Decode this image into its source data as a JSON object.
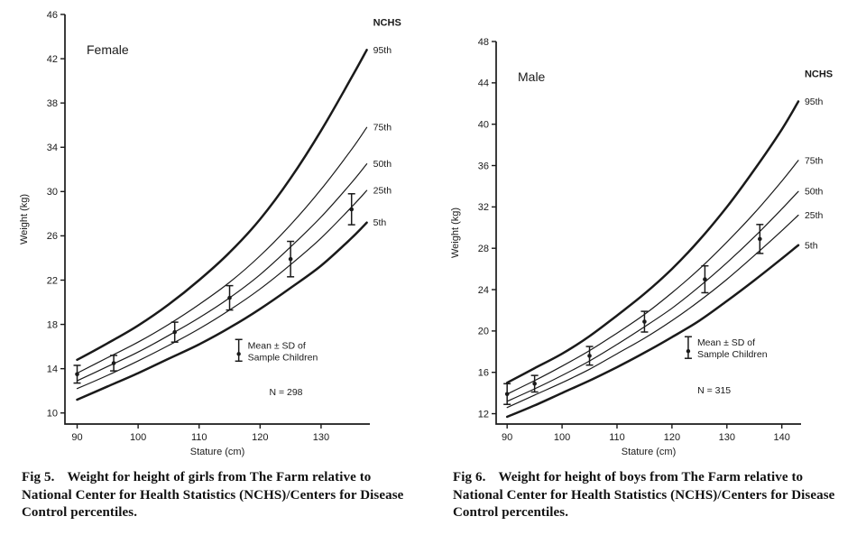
{
  "page": {
    "background": "#ffffff",
    "ink": "#1a1a1a"
  },
  "chart_data": [
    {
      "type": "line",
      "group_label": "Female",
      "nchs_label": "NCHS",
      "xlabel": "Stature (cm)",
      "ylabel": "Weight (kg)",
      "xlim": [
        88,
        138
      ],
      "ylim": [
        9,
        46
      ],
      "xticks": [
        90,
        100,
        110,
        120,
        130
      ],
      "yticks": [
        10,
        14,
        18,
        22,
        26,
        30,
        34,
        38,
        42,
        46
      ],
      "pad_top": 14,
      "x": [
        90,
        95,
        100,
        105,
        110,
        115,
        120,
        125,
        130,
        135,
        137.5
      ],
      "series": [
        {
          "name": "95th",
          "values": [
            14.8,
            16.3,
            17.9,
            19.8,
            22.0,
            24.5,
            27.5,
            31.2,
            35.5,
            40.3,
            42.8
          ]
        },
        {
          "name": "75th",
          "values": [
            13.6,
            15.0,
            16.4,
            18.0,
            19.8,
            21.8,
            24.2,
            27.0,
            30.2,
            33.8,
            35.8
          ]
        },
        {
          "name": "50th",
          "values": [
            12.9,
            14.2,
            15.5,
            17.0,
            18.6,
            20.4,
            22.5,
            25.0,
            27.7,
            30.8,
            32.5
          ]
        },
        {
          "name": "25th",
          "values": [
            12.2,
            13.4,
            14.7,
            16.1,
            17.6,
            19.3,
            21.2,
            23.4,
            25.8,
            28.6,
            30.1
          ]
        },
        {
          "name": "5th",
          "values": [
            11.2,
            12.4,
            13.6,
            14.9,
            16.2,
            17.7,
            19.4,
            21.3,
            23.3,
            25.8,
            27.2
          ]
        }
      ],
      "sample_points": [
        {
          "x": 90,
          "mean": 13.5,
          "sd": 0.8
        },
        {
          "x": 96,
          "mean": 14.5,
          "sd": 0.7
        },
        {
          "x": 106,
          "mean": 17.3,
          "sd": 0.9
        },
        {
          "x": 115,
          "mean": 20.4,
          "sd": 1.1
        },
        {
          "x": 125,
          "mean": 23.9,
          "sd": 1.6
        },
        {
          "x": 135,
          "mean": 28.4,
          "sd": 1.4
        }
      ],
      "legend": {
        "line1": "Mean ± SD of",
        "line2": "Sample Children",
        "n_label": "N = 298",
        "fx": 0.57,
        "fy": 0.82,
        "n_fx": 0.67,
        "n_fy": 0.93
      },
      "caption": {
        "label": "Fig 5.",
        "text": "Weight for height of girls from The Farm relative to National Center for Health Statistics (NCHS)/Centers for Disease Control percentiles."
      }
    },
    {
      "type": "line",
      "group_label": "Male",
      "nchs_label": "NCHS",
      "xlabel": "Stature (cm)",
      "ylabel": "Weight (kg)",
      "xlim": [
        88,
        143.5
      ],
      "ylim": [
        11,
        48
      ],
      "xticks": [
        90,
        100,
        110,
        120,
        130,
        140
      ],
      "yticks": [
        12,
        16,
        20,
        24,
        28,
        32,
        36,
        40,
        44,
        48
      ],
      "pad_top": 44,
      "x": [
        90,
        95,
        100,
        105,
        110,
        115,
        120,
        125,
        130,
        135,
        140,
        143
      ],
      "series": [
        {
          "name": "95th",
          "values": [
            15.0,
            16.4,
            17.8,
            19.5,
            21.5,
            23.6,
            26.0,
            28.8,
            32.0,
            35.6,
            39.5,
            42.2
          ]
        },
        {
          "name": "75th",
          "values": [
            13.9,
            15.2,
            16.6,
            18.1,
            19.8,
            21.6,
            23.7,
            26.0,
            28.6,
            31.4,
            34.5,
            36.5
          ]
        },
        {
          "name": "50th",
          "values": [
            13.2,
            14.4,
            15.7,
            17.1,
            18.7,
            20.4,
            22.2,
            24.3,
            26.6,
            29.1,
            31.8,
            33.5
          ]
        },
        {
          "name": "25th",
          "values": [
            12.6,
            13.8,
            15.0,
            16.3,
            17.8,
            19.3,
            21.0,
            22.9,
            25.0,
            27.3,
            29.7,
            31.2
          ]
        },
        {
          "name": "5th",
          "values": [
            11.7,
            12.8,
            14.0,
            15.2,
            16.5,
            17.9,
            19.4,
            21.0,
            22.9,
            24.9,
            27.0,
            28.3
          ]
        }
      ],
      "sample_points": [
        {
          "x": 90,
          "mean": 13.9,
          "sd": 1.0
        },
        {
          "x": 95,
          "mean": 14.9,
          "sd": 0.8
        },
        {
          "x": 105,
          "mean": 17.6,
          "sd": 0.9
        },
        {
          "x": 115,
          "mean": 20.9,
          "sd": 1.0
        },
        {
          "x": 126,
          "mean": 25.0,
          "sd": 1.3
        },
        {
          "x": 136,
          "mean": 28.9,
          "sd": 1.4
        }
      ],
      "legend": {
        "line1": "Mean ± SD of",
        "line2": "Sample Children",
        "n_label": "N = 315",
        "fx": 0.63,
        "fy": 0.8,
        "n_fx": 0.66,
        "n_fy": 0.92
      },
      "caption": {
        "label": "Fig 6.",
        "text": "Weight for height of boys from The Farm relative to National Center for Health Statistics (NCHS)/Centers for Disease Control percentiles."
      }
    }
  ]
}
